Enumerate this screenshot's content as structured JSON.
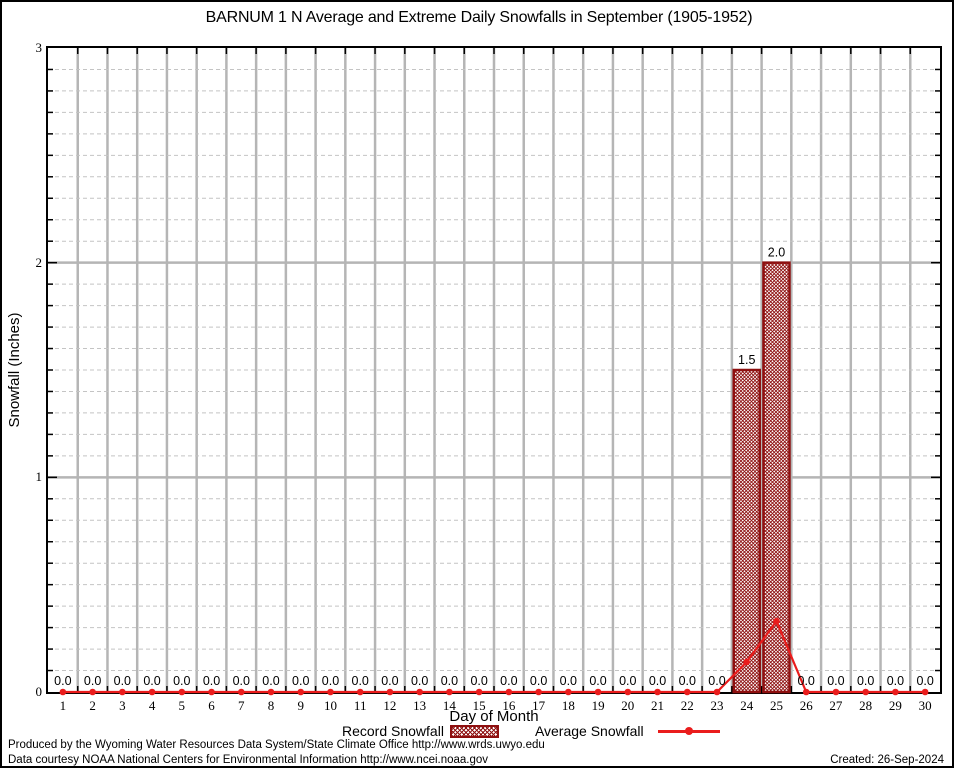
{
  "title": "BARNUM 1 N Average and Extreme Daily Snowfalls in September (1905-1952)",
  "y_axis": {
    "label": "Snowfall (Inches)",
    "tick_values": [
      0,
      1,
      2,
      3
    ],
    "min": 0,
    "max": 3,
    "minor_step": 0.1
  },
  "x_axis": {
    "label": "Day of Month",
    "min_day": 1,
    "max_day": 30
  },
  "legend": {
    "record_label": "Record Snowfall",
    "average_label": "Average Snowfall"
  },
  "footer": {
    "line1": "Produced by the Wyoming Water Resources Data System/State Climate Office http://www.wrds.uwyo.edu",
    "line2": "Data courtesy NOAA National Centers for Environmental Information http://www.ncei.noaa.gov",
    "created": "Created: 26-Sep-2024"
  },
  "colors": {
    "line_red": "#ea1c1c",
    "bar_dark_red": "#8e0f0f",
    "grid_solid": "#b5b5b5",
    "grid_dashed": "#c4c4c4",
    "axis_black": "#000000"
  },
  "chart_data": {
    "type": "bar",
    "subtype": "bar-and-line combo",
    "title": "BARNUM 1 N Average and Extreme Daily Snowfalls in September (1905-1952)",
    "xlabel": "Day of Month",
    "ylabel": "Snowfall (Inches)",
    "ylim": [
      0,
      3
    ],
    "xlim": [
      0.5,
      30.5
    ],
    "grid": "on",
    "legend_position": "bottom-center",
    "x": [
      1,
      2,
      3,
      4,
      5,
      6,
      7,
      8,
      9,
      10,
      11,
      12,
      13,
      14,
      15,
      16,
      17,
      18,
      19,
      20,
      21,
      22,
      23,
      24,
      25,
      26,
      27,
      28,
      29,
      30
    ],
    "series": [
      {
        "name": "Record Snowfall",
        "type": "bar",
        "style": "dark-red crosshatch",
        "values": [
          0.0,
          0.0,
          0.0,
          0.0,
          0.0,
          0.0,
          0.0,
          0.0,
          0.0,
          0.0,
          0.0,
          0.0,
          0.0,
          0.0,
          0.0,
          0.0,
          0.0,
          0.0,
          0.0,
          0.0,
          0.0,
          0.0,
          0.0,
          1.5,
          2.0,
          0.0,
          0.0,
          0.0,
          0.0,
          0.0
        ],
        "labels_shown": true
      },
      {
        "name": "Average Snowfall",
        "type": "line",
        "style": "red line with round markers",
        "values": [
          0.0,
          0.0,
          0.0,
          0.0,
          0.0,
          0.0,
          0.0,
          0.0,
          0.0,
          0.0,
          0.0,
          0.0,
          0.0,
          0.0,
          0.0,
          0.0,
          0.0,
          0.0,
          0.0,
          0.0,
          0.0,
          0.0,
          0.0,
          0.14,
          0.33,
          0.0,
          0.0,
          0.0,
          0.0,
          0.0
        ],
        "labels_shown": false
      }
    ]
  }
}
